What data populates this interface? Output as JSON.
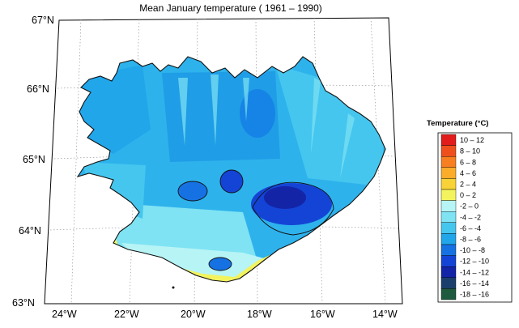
{
  "title": "Mean January temperature ( 1961 – 1990)",
  "latitude_labels": [
    "67°N",
    "66°N",
    "65°N",
    "64°N",
    "63°N"
  ],
  "longitude_labels": [
    "24°W",
    "22°W",
    "20°W",
    "18°W",
    "16°W",
    "14°W"
  ],
  "legend": {
    "title": "Temperature (°C)",
    "items": [
      {
        "label": "10 – 12",
        "color": "#e21b1b"
      },
      {
        "label": "8 – 10",
        "color": "#ef4f1c"
      },
      {
        "label": "6 – 8",
        "color": "#f77f22"
      },
      {
        "label": "4 – 6",
        "color": "#fbac2a"
      },
      {
        "label": "2 – 4",
        "color": "#f8d236"
      },
      {
        "label": "0 – 2",
        "color": "#f3f35e"
      },
      {
        "label": "-2 – 0",
        "color": "#b7f4f6"
      },
      {
        "label": "-4 – -2",
        "color": "#7fe3f3"
      },
      {
        "label": "-6 – -4",
        "color": "#45c6ef"
      },
      {
        "label": "-8 – -6",
        "color": "#21a6ea"
      },
      {
        "label": "-10 – -8",
        "color": "#1672e3"
      },
      {
        "label": "-12 – -10",
        "color": "#1444d6"
      },
      {
        "label": "-14 – -12",
        "color": "#1324a6"
      },
      {
        "label": "-16 – -14",
        "color": "#1b3f6d"
      },
      {
        "label": "-18 – -16",
        "color": "#1e5a3e"
      }
    ]
  }
}
